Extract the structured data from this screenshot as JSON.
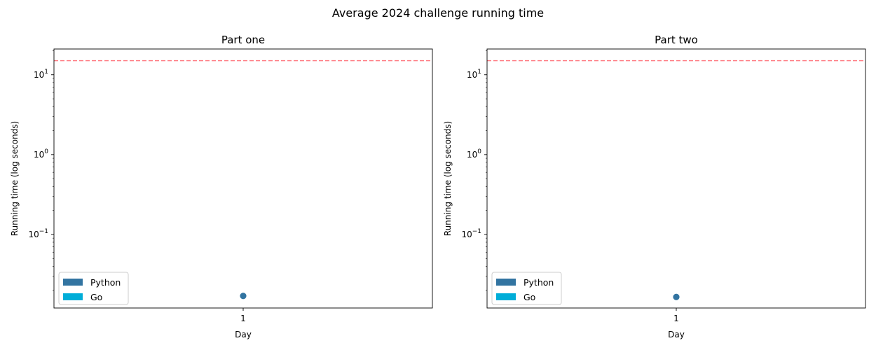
{
  "suptitle": "Average 2024 challenge running time",
  "chart_data": [
    {
      "type": "scatter",
      "title": "Part one",
      "xlabel": "Day",
      "ylabel": "Running time (log seconds)",
      "yscale": "log",
      "ylim": [
        0.012,
        21
      ],
      "x_categories": [
        "1"
      ],
      "threshold_line": {
        "value": 15,
        "color": "#ff7f86",
        "style": "dashed"
      },
      "series": [
        {
          "name": "Python",
          "color": "#3274a1",
          "points": [
            {
              "x": "1",
              "y": 0.017
            }
          ]
        },
        {
          "name": "Go",
          "color": "#00add8",
          "points": []
        }
      ],
      "ticks": [
        {
          "value": 10,
          "base": "10",
          "exp": "1"
        },
        {
          "value": 1,
          "base": "10",
          "exp": "0"
        },
        {
          "value": 0.1,
          "base": "10",
          "exp": "−1"
        }
      ],
      "legend": {
        "position": "lower-left"
      }
    },
    {
      "type": "scatter",
      "title": "Part two",
      "xlabel": "Day",
      "ylabel": "Running time (log seconds)",
      "yscale": "log",
      "ylim": [
        0.012,
        21
      ],
      "x_categories": [
        "1"
      ],
      "threshold_line": {
        "value": 15,
        "color": "#ff7f86",
        "style": "dashed"
      },
      "series": [
        {
          "name": "Python",
          "color": "#3274a1",
          "points": [
            {
              "x": "1",
              "y": 0.0165
            }
          ]
        },
        {
          "name": "Go",
          "color": "#00add8",
          "points": []
        }
      ],
      "ticks": [
        {
          "value": 10,
          "base": "10",
          "exp": "1"
        },
        {
          "value": 1,
          "base": "10",
          "exp": "0"
        },
        {
          "value": 0.1,
          "base": "10",
          "exp": "−1"
        }
      ],
      "legend": {
        "position": "lower-left"
      }
    }
  ]
}
